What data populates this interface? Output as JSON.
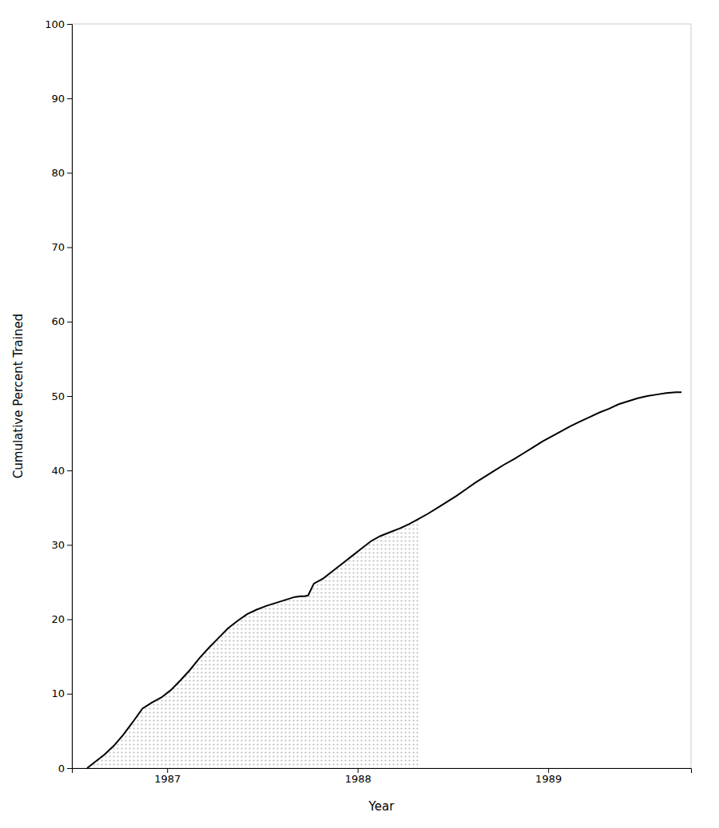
{
  "chart_data": {
    "type": "line",
    "xlabel": "Year",
    "ylabel": "Cumulative Percent Trained",
    "xlim": [
      1986.5,
      1989.75
    ],
    "ylim": [
      0,
      100
    ],
    "xticks": [
      1987,
      1988,
      1989
    ],
    "yticks": [
      0,
      10,
      20,
      30,
      40,
      50,
      60,
      70,
      80,
      90,
      100
    ],
    "series": [
      {
        "type": "area",
        "color": "#bbbbbb",
        "x": [
          1986.58,
          1986.62,
          1986.67,
          1986.72,
          1986.77,
          1986.82,
          1986.87,
          1986.92,
          1986.97,
          1987.02,
          1987.07,
          1987.12,
          1987.17,
          1987.22,
          1987.27,
          1987.32,
          1987.37,
          1987.42,
          1987.47,
          1987.52,
          1987.57,
          1987.62,
          1987.67,
          1987.7,
          1987.72,
          1987.74,
          1987.77,
          1987.82,
          1987.87,
          1987.92,
          1987.97,
          1988.02,
          1988.07,
          1988.12,
          1988.17,
          1988.22,
          1988.27,
          1988.32
        ],
        "values": [
          0.0,
          0.8,
          1.8,
          3.0,
          4.5,
          6.2,
          8.0,
          8.8,
          9.5,
          10.5,
          11.8,
          13.2,
          14.8,
          16.2,
          17.5,
          18.8,
          19.8,
          20.7,
          21.3,
          21.8,
          22.2,
          22.6,
          23.0,
          23.1,
          23.1,
          23.2,
          24.8,
          25.5,
          26.5,
          27.5,
          28.5,
          29.5,
          30.5,
          31.2,
          31.7,
          32.2,
          32.8,
          33.5
        ]
      },
      {
        "type": "line",
        "color": "#000000",
        "x": [
          1986.58,
          1986.62,
          1986.67,
          1986.72,
          1986.77,
          1986.82,
          1986.87,
          1986.92,
          1986.97,
          1987.02,
          1987.07,
          1987.12,
          1987.17,
          1987.22,
          1987.27,
          1987.32,
          1987.37,
          1987.42,
          1987.47,
          1987.52,
          1987.57,
          1987.62,
          1987.67,
          1987.7,
          1987.72,
          1987.74,
          1987.77,
          1987.82,
          1987.87,
          1987.92,
          1987.97,
          1988.02,
          1988.07,
          1988.12,
          1988.17,
          1988.22,
          1988.27,
          1988.32,
          1988.37,
          1988.42,
          1988.47,
          1988.52,
          1988.57,
          1988.62,
          1988.67,
          1988.72,
          1988.77,
          1988.82,
          1988.87,
          1988.92,
          1988.97,
          1989.02,
          1989.07,
          1989.12,
          1989.17,
          1989.22,
          1989.27,
          1989.32,
          1989.37,
          1989.42,
          1989.47,
          1989.52,
          1989.57,
          1989.62,
          1989.67,
          1989.7
        ],
        "values": [
          0.0,
          0.8,
          1.8,
          3.0,
          4.5,
          6.2,
          8.0,
          8.8,
          9.5,
          10.5,
          11.8,
          13.2,
          14.8,
          16.2,
          17.5,
          18.8,
          19.8,
          20.7,
          21.3,
          21.8,
          22.2,
          22.6,
          23.0,
          23.1,
          23.1,
          23.2,
          24.8,
          25.5,
          26.5,
          27.5,
          28.5,
          29.5,
          30.5,
          31.2,
          31.7,
          32.2,
          32.8,
          33.5,
          34.2,
          35.0,
          35.8,
          36.6,
          37.5,
          38.4,
          39.2,
          40.0,
          40.8,
          41.5,
          42.3,
          43.1,
          43.9,
          44.6,
          45.3,
          46.0,
          46.6,
          47.2,
          47.8,
          48.3,
          48.9,
          49.3,
          49.7,
          50.0,
          50.2,
          50.4,
          50.5,
          50.5
        ]
      }
    ]
  }
}
